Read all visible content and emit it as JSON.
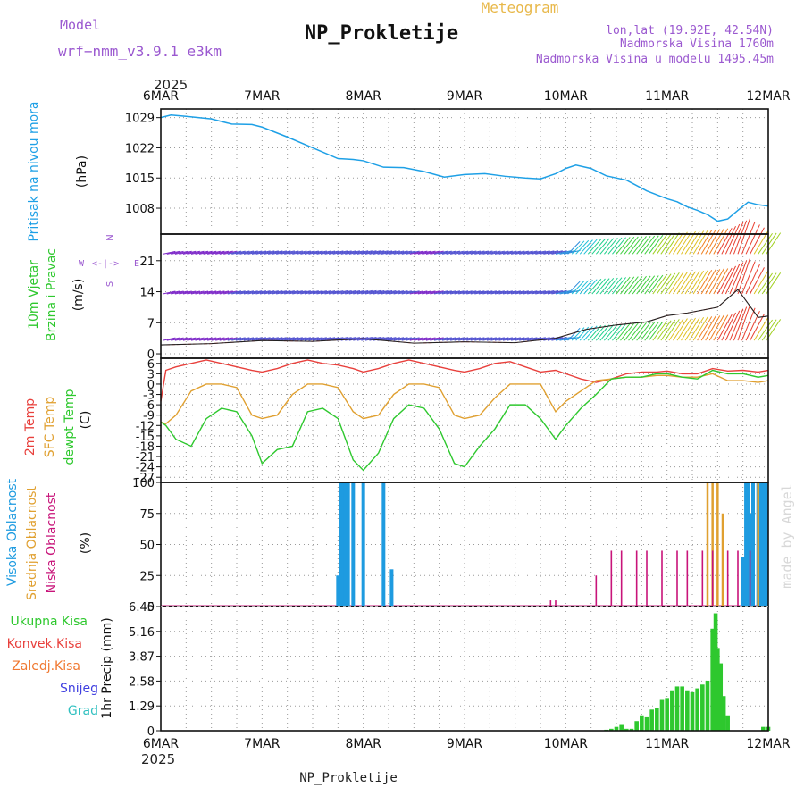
{
  "header": {
    "model_label": "Model",
    "model_name": "wrf−nmm_v3.9.1  e3km",
    "meteogram_label": "Meteogram",
    "station": "NP_Prokletije",
    "lonlat": "lon,lat (19.92E, 42.54N)",
    "elevation": "Nadmorska Visina 1760m",
    "model_elevation": "Nadmorska Visina u modelu 1495.45m",
    "year": "2025",
    "footer_station": "NP_Prokletije",
    "watermark": "made by Angel"
  },
  "colors": {
    "pressure": "#1ea0e6",
    "t2m": "#e8403c",
    "sfc": "#e0a030",
    "dewpt": "#2ec82e",
    "high_cloud": "#1e9be0",
    "mid_cloud": "#e0a030",
    "low_cloud": "#c8147a",
    "total_precip": "#2ec82e",
    "wind_calm": "#7d28c8",
    "model_label": "#9b59d0"
  },
  "chart_data": [
    {
      "type": "line",
      "panel": "pressure",
      "ylabel_lines": [
        "Pritisak na nivou mora",
        "(hPa)"
      ],
      "x_start": "6MAR",
      "x_end": "12MAR",
      "days": 6,
      "xtick_labels": [
        "6MAR",
        "7MAR",
        "8MAR",
        "9MAR",
        "10MAR",
        "11MAR",
        "12MAR"
      ],
      "ylim": [
        1002,
        1031
      ],
      "yticks": [
        1008,
        1015,
        1022,
        1029
      ],
      "series": [
        {
          "name": "Pritisak",
          "x": [
            0,
            0.1,
            0.25,
            0.5,
            0.7,
            0.9,
            1.0,
            1.25,
            1.5,
            1.75,
            1.9,
            2.0,
            2.2,
            2.4,
            2.6,
            2.8,
            3.0,
            3.2,
            3.4,
            3.6,
            3.75,
            3.9,
            4.0,
            4.1,
            4.25,
            4.4,
            4.6,
            4.8,
            5.0,
            5.1,
            5.2,
            5.3,
            5.4,
            5.5,
            5.6,
            5.7,
            5.8,
            5.9,
            6.0
          ],
          "values": [
            1029,
            1029.6,
            1029.3,
            1028.7,
            1027.5,
            1027.4,
            1026.8,
            1024.5,
            1022,
            1019.5,
            1019.3,
            1019,
            1017.5,
            1017.4,
            1016.5,
            1015.2,
            1015.8,
            1016,
            1015.4,
            1015,
            1014.8,
            1016,
            1017.2,
            1018,
            1017.2,
            1015.5,
            1014.5,
            1012,
            1010.2,
            1009.5,
            1008.3,
            1007.5,
            1006.5,
            1005,
            1005.5,
            1007.5,
            1009.4,
            1008.8,
            1008.5
          ]
        }
      ]
    },
    {
      "type": "line",
      "panel": "wind",
      "ylabel_lines": [
        "10m Vjetar",
        "Brzina i Pravac",
        "(m/s)"
      ],
      "compass": [
        "W",
        "<-|->",
        "E",
        "S",
        "N"
      ],
      "ylim": [
        -1,
        27
      ],
      "yticks": [
        0,
        7,
        14,
        21
      ],
      "series": [
        {
          "name": "Brzina vjetra 10m",
          "x": [
            0,
            0.5,
            1.0,
            1.5,
            2.0,
            2.5,
            3.0,
            3.5,
            3.9,
            4.2,
            4.5,
            4.8,
            5.0,
            5.2,
            5.5,
            5.7,
            5.9,
            6.0
          ],
          "values": [
            2,
            2.3,
            3,
            2.8,
            3.4,
            2.4,
            2.7,
            2.5,
            3.5,
            5.5,
            6.5,
            7.2,
            8.6,
            9.2,
            10.5,
            14.5,
            8.2,
            8.5
          ]
        }
      ]
    },
    {
      "type": "line",
      "panel": "temperature",
      "ylabel_lines": [
        "2m Temp",
        "SFC Temp",
        "dewpt Temp",
        "(C)"
      ],
      "ylim": [
        -28.5,
        7.5
      ],
      "yticks": [
        6,
        3,
        0,
        -3,
        -6,
        -9,
        -12,
        -15,
        -18,
        -21,
        -24,
        -27
      ],
      "x": [
        0,
        0.05,
        0.15,
        0.3,
        0.45,
        0.6,
        0.75,
        0.9,
        1.0,
        1.15,
        1.3,
        1.45,
        1.6,
        1.75,
        1.9,
        2.0,
        2.15,
        2.3,
        2.45,
        2.6,
        2.75,
        2.9,
        3.0,
        3.15,
        3.3,
        3.45,
        3.6,
        3.75,
        3.9,
        4.0,
        4.15,
        4.3,
        4.45,
        4.6,
        4.75,
        4.9,
        5.0,
        5.15,
        5.3,
        5.45,
        5.6,
        5.75,
        5.9,
        6.0
      ],
      "series": [
        {
          "name": "2m Temp",
          "values": [
            -5,
            4,
            5,
            6,
            7,
            6,
            5,
            4,
            3.5,
            4.5,
            6,
            7,
            6,
            5.5,
            4.5,
            3.5,
            4.5,
            6,
            7,
            6,
            5,
            4,
            3.5,
            4.5,
            6,
            6.5,
            5,
            3.5,
            4,
            3,
            1.5,
            0.5,
            1.5,
            3,
            3.5,
            3.5,
            3.8,
            3,
            3,
            4.5,
            3.8,
            4,
            3.5,
            4
          ]
        },
        {
          "name": "SFC Temp",
          "values": [
            -11,
            -11.5,
            -9,
            -2,
            0,
            0,
            -1,
            -9,
            -10,
            -9,
            -3,
            0,
            0,
            -1,
            -8,
            -10,
            -9,
            -3,
            0,
            0,
            -1,
            -9,
            -10,
            -9,
            -4,
            0,
            0,
            0,
            -8,
            -5,
            -2,
            1,
            1.5,
            2,
            2,
            2.5,
            2.5,
            2,
            2,
            3,
            1,
            1,
            0.5,
            1
          ]
        },
        {
          "name": "dewpt Temp",
          "values": [
            -11,
            -12,
            -16,
            -18,
            -10,
            -7,
            -8,
            -15,
            -23,
            -19,
            -18,
            -8,
            -7,
            -10,
            -22,
            -25,
            -20,
            -10,
            -6,
            -7,
            -13,
            -23,
            -24,
            -18,
            -13,
            -6,
            -6,
            -10,
            -16,
            -12,
            -7,
            -3,
            1.5,
            2,
            2,
            3,
            3,
            2,
            1.5,
            4,
            3,
            3,
            2,
            2.5
          ]
        }
      ]
    },
    {
      "type": "bar",
      "panel": "cloud",
      "ylabel_lines": [
        "Visoka Oblacnost",
        "Srednja Oblacnost",
        "Niska Oblacnost",
        "(%)"
      ],
      "ylim": [
        0,
        100
      ],
      "yticks": [
        0,
        25,
        50,
        75,
        100
      ],
      "series": [
        {
          "name": "Visoka Oblacnost",
          "x": [
            1.75,
            1.78,
            1.8,
            1.82,
            1.85,
            1.9,
            2.0,
            2.2,
            2.28,
            5.75,
            5.78,
            5.8,
            5.82,
            5.85,
            5.9,
            5.92,
            5.95,
            5.98
          ],
          "values": [
            25,
            100,
            100,
            100,
            100,
            100,
            100,
            100,
            30,
            40,
            100,
            100,
            75,
            100,
            100,
            100,
            100,
            100
          ]
        },
        {
          "name": "Srednja Oblacnost",
          "x": [
            5.4,
            5.45,
            5.5,
            5.55,
            5.9
          ],
          "values": [
            100,
            100,
            100,
            75,
            100
          ]
        },
        {
          "name": "Niska Oblacnost",
          "x": [
            3.85,
            3.9,
            4.3,
            4.45,
            4.55,
            4.7,
            4.8,
            4.95,
            5.1,
            5.2,
            5.35,
            5.45,
            5.6,
            5.7,
            5.82
          ],
          "values": [
            5,
            5,
            25,
            45,
            45,
            45,
            45,
            45,
            45,
            45,
            45,
            45,
            45,
            45,
            45
          ]
        }
      ]
    },
    {
      "type": "bar",
      "panel": "precip",
      "ylabel_lines": [
        "Ukupna Kisa",
        "Konvek.Kisa",
        "Zaledj.Kisa",
        "Snijeg",
        "Grad",
        "1hr Precip (mm)"
      ],
      "ylim": [
        0,
        6.45
      ],
      "yticks": [
        0,
        1.29,
        2.58,
        3.87,
        5.16,
        6.45
      ],
      "ytick_labels": [
        "0",
        "1.29",
        "2.58",
        "3.87",
        "5.16",
        "6.45"
      ],
      "series": [
        {
          "name": "Ukupna Kisa",
          "x": [
            4.4,
            4.45,
            4.5,
            4.55,
            4.6,
            4.65,
            4.7,
            4.75,
            4.8,
            4.85,
            4.9,
            4.95,
            5.0,
            5.05,
            5.1,
            5.15,
            5.2,
            5.25,
            5.3,
            5.35,
            5.4,
            5.45,
            5.48,
            5.5,
            5.53,
            5.56,
            5.6,
            5.95,
            6.0
          ],
          "values": [
            0.05,
            0.1,
            0.2,
            0.3,
            0.1,
            0.1,
            0.5,
            0.8,
            0.7,
            1.1,
            1.2,
            1.6,
            1.7,
            2.1,
            2.3,
            2.3,
            2.1,
            2.0,
            2.2,
            2.4,
            2.6,
            5.3,
            6.1,
            4.3,
            3.5,
            1.8,
            0.8,
            0.2,
            0.2
          ]
        }
      ]
    }
  ]
}
